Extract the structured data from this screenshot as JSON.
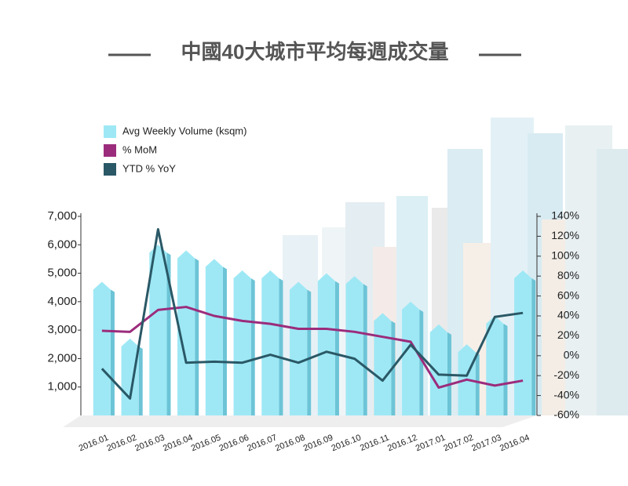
{
  "chart_data": {
    "type": "bar-line",
    "title": "中國40大城市平均每週成交量",
    "categories": [
      "2016.01",
      "2016.02",
      "2016.03",
      "2016.04",
      "2016.05",
      "2016.06",
      "2016.07",
      "2016.08",
      "2016.09",
      "2016.10",
      "2016.11",
      "2016.12",
      "2017.01",
      "2017.02",
      "2017.03",
      "2016.04"
    ],
    "series": [
      {
        "name": "Avg Weekly Volume (ksqm)",
        "type": "bar",
        "color": "#9ee8f5",
        "axis": "y",
        "values": [
          4700,
          2700,
          6000,
          5800,
          5500,
          5100,
          5100,
          4700,
          5000,
          4900,
          3600,
          4000,
          3200,
          2500,
          3500,
          5100
        ]
      },
      {
        "name": "% MoM",
        "type": "line",
        "color": "#9b2c7c",
        "axis": "y2",
        "values": [
          25,
          24,
          46,
          49,
          40,
          35,
          32,
          27,
          27,
          24,
          19,
          14,
          -32,
          -24,
          -30,
          -25
        ]
      },
      {
        "name": "YTD % YoY",
        "type": "line",
        "color": "#2a5866",
        "axis": "y2",
        "values": [
          -13,
          -43,
          127,
          -7,
          -6,
          -7,
          1,
          -7,
          4,
          -3,
          -25,
          11,
          -19,
          -20,
          39,
          43
        ]
      }
    ],
    "ylim": [
      0,
      7000
    ],
    "yticks": [
      {
        "value": 1000,
        "label": "1,000"
      },
      {
        "value": 2000,
        "label": "2,000"
      },
      {
        "value": 3000,
        "label": "3,000"
      },
      {
        "value": 4000,
        "label": "4,000"
      },
      {
        "value": 5000,
        "label": "5,000"
      },
      {
        "value": 6000,
        "label": "6,000"
      },
      {
        "value": 7000,
        "label": "7,000"
      }
    ],
    "y2lim": [
      -60,
      140
    ],
    "y2ticks": [
      {
        "value": -60,
        "label": "-60%"
      },
      {
        "value": -40,
        "label": "-40%"
      },
      {
        "value": -20,
        "label": "-20%"
      },
      {
        "value": 0,
        "label": "0%"
      },
      {
        "value": 20,
        "label": "20%"
      },
      {
        "value": 40,
        "label": "40%"
      },
      {
        "value": 60,
        "label": "60%"
      },
      {
        "value": 80,
        "label": "80%"
      },
      {
        "value": 100,
        "label": "100%"
      },
      {
        "value": 120,
        "label": "120%"
      },
      {
        "value": 140,
        "label": "140%"
      }
    ]
  }
}
